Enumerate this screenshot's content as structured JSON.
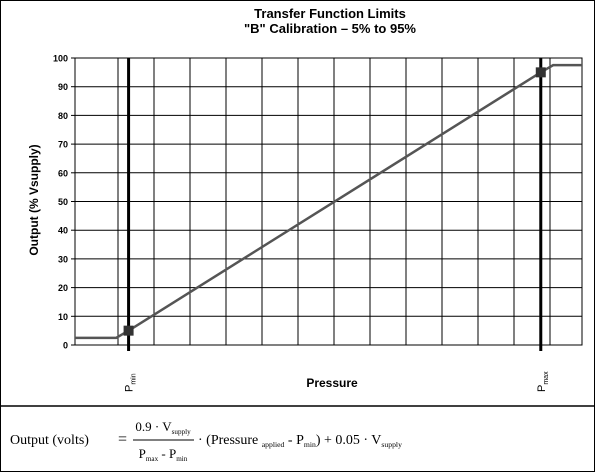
{
  "chart_data": {
    "type": "line",
    "title": "Transfer Function Limits",
    "subtitle": "\"B\" Calibration – 5% to 95%",
    "y_label": "Output (% Vsupply)",
    "x_label": "Pressure",
    "xlim": [
      -13,
      110
    ],
    "ylim": [
      0,
      100
    ],
    "yticks": [
      0,
      10,
      20,
      30,
      40,
      50,
      60,
      70,
      80,
      90,
      100
    ],
    "xticks": [
      {
        "value": 0,
        "label": "P",
        "subscript": "min"
      },
      {
        "value": 100,
        "label": "P",
        "subscript": "max"
      }
    ],
    "grid": true,
    "series": [
      {
        "x": [
          -13,
          -3,
          0,
          100,
          103,
          110
        ],
        "values": [
          2.5,
          2.5,
          5,
          95,
          97.5,
          97.5
        ],
        "color": "#555555"
      }
    ],
    "points": {
      "x": [
        0,
        100
      ],
      "values": [
        5,
        95
      ],
      "color": "#333333"
    }
  },
  "formula": {
    "lhs": "Output (volts)",
    "equals": "=",
    "numerator": [
      {
        "text": "0.9 · V"
      },
      {
        "text": "supply",
        "sub": true
      }
    ],
    "denominator": [
      {
        "text": "P"
      },
      {
        "text": "max",
        "sub": true
      },
      {
        "text": " - P"
      },
      {
        "text": "min",
        "sub": true
      }
    ],
    "rest": [
      {
        "text": "· (Pressure "
      },
      {
        "text": "applied",
        "sub": true
      },
      {
        "text": " - P"
      },
      {
        "text": "min",
        "sub": true
      },
      {
        "text": ") + 0.05 · V"
      },
      {
        "text": "supply",
        "sub": true
      }
    ]
  }
}
